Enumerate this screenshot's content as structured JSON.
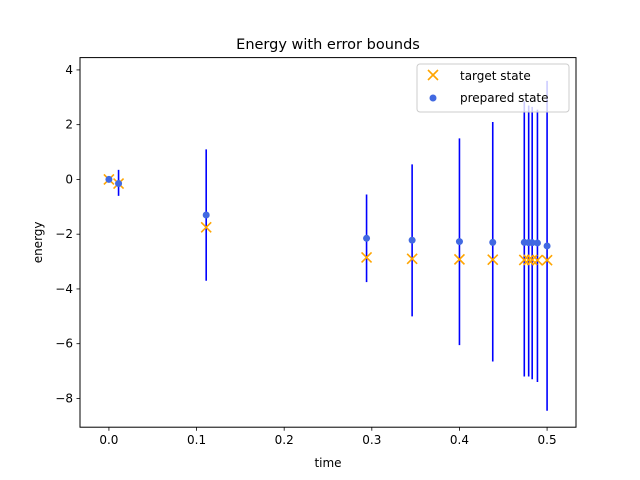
{
  "chart_data": {
    "type": "scatter",
    "title": "Energy with error bounds",
    "xlabel": "time",
    "ylabel": "energy",
    "xlim": [
      -0.033,
      0.533
    ],
    "ylim": [
      -9.05,
      4.45
    ],
    "xticks": [
      0.0,
      0.1,
      0.2,
      0.3,
      0.4,
      0.5
    ],
    "xtick_labels": [
      "0.0",
      "0.1",
      "0.2",
      "0.3",
      "0.4",
      "0.5"
    ],
    "yticks": [
      -8,
      -6,
      -4,
      -2,
      0,
      2,
      4
    ],
    "ytick_labels": [
      "−8",
      "−6",
      "−4",
      "−2",
      "0",
      "2",
      "4"
    ],
    "grid": false,
    "legend_position": "top-right",
    "series": [
      {
        "name": "target state",
        "marker": "x",
        "color": "#FFA500",
        "x": [
          0.0,
          0.011,
          0.111,
          0.294,
          0.346,
          0.4,
          0.438,
          0.474,
          0.479,
          0.483,
          0.489,
          0.5
        ],
        "y": [
          0.0,
          -0.15,
          -1.75,
          -2.85,
          -2.9,
          -2.92,
          -2.93,
          -2.94,
          -2.94,
          -2.94,
          -2.95,
          -2.95
        ]
      },
      {
        "name": "prepared state",
        "marker": "o",
        "color": "#4169E1",
        "x": [
          0.0,
          0.011,
          0.111,
          0.294,
          0.346,
          0.4,
          0.438,
          0.474,
          0.479,
          0.483,
          0.489,
          0.5
        ],
        "y": [
          0.0,
          -0.15,
          -1.3,
          -2.15,
          -2.22,
          -2.27,
          -2.3,
          -2.3,
          -2.31,
          -2.31,
          -2.32,
          -2.43
        ],
        "error_bars": {
          "color": "#0000FF",
          "low": [
            -0.05,
            -0.6,
            -3.7,
            -3.75,
            -5.0,
            -6.05,
            -6.65,
            -7.2,
            -7.2,
            -7.3,
            -7.4,
            -8.45
          ],
          "high": [
            0.05,
            0.35,
            1.1,
            -0.55,
            0.55,
            1.5,
            2.1,
            2.85,
            2.7,
            2.65,
            2.55,
            3.6
          ]
        }
      }
    ]
  }
}
